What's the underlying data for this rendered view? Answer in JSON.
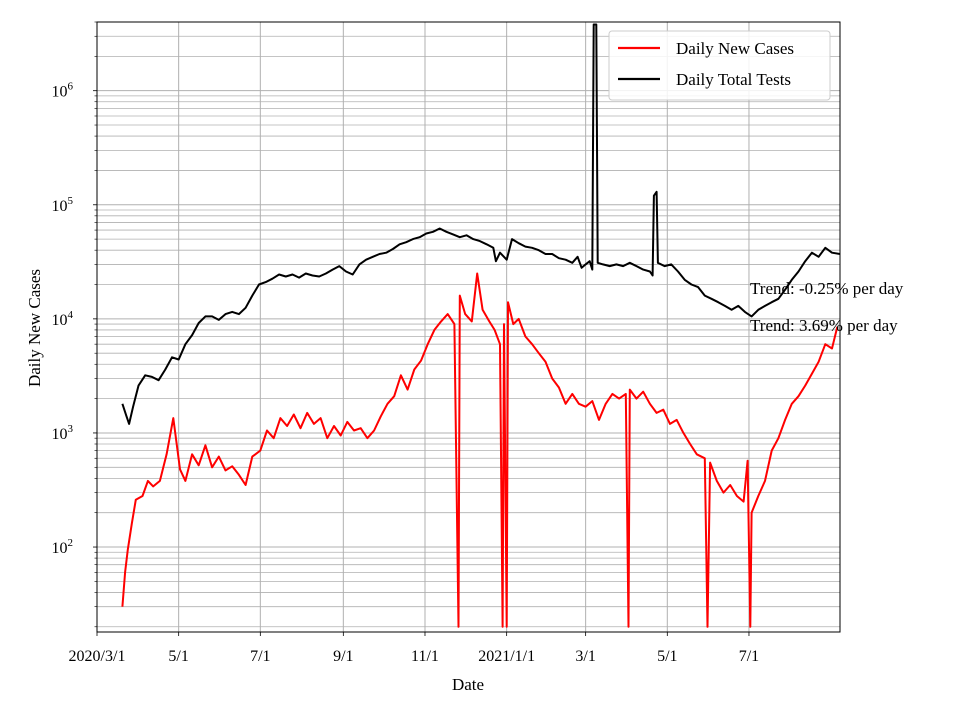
{
  "chart_data": {
    "type": "line",
    "title": "",
    "xlabel": "Date",
    "ylabel": "Daily New Cases",
    "yscale": "log",
    "ylim": [
      18,
      4000000
    ],
    "xlim": [
      "2020-03-01",
      "2021-09-07"
    ],
    "grid": true,
    "legend_position": "top-right",
    "x_ticks": [
      {
        "date": "2020-03-01",
        "label": "2020/3/1"
      },
      {
        "date": "2020-05-01",
        "label": "5/1"
      },
      {
        "date": "2020-07-01",
        "label": "7/1"
      },
      {
        "date": "2020-09-01",
        "label": "9/1"
      },
      {
        "date": "2020-11-01",
        "label": "11/1"
      },
      {
        "date": "2021-01-01",
        "label": "2021/1/1"
      },
      {
        "date": "2021-03-01",
        "label": "3/1"
      },
      {
        "date": "2021-05-01",
        "label": "5/1"
      },
      {
        "date": "2021-07-01",
        "label": "7/1"
      }
    ],
    "y_ticks": [
      {
        "value": 100,
        "base": "10",
        "exp": "2"
      },
      {
        "value": 1000,
        "base": "10",
        "exp": "3"
      },
      {
        "value": 10000,
        "base": "10",
        "exp": "4"
      },
      {
        "value": 100000,
        "base": "10",
        "exp": "5"
      },
      {
        "value": 1000000,
        "base": "10",
        "exp": "6"
      }
    ],
    "series": [
      {
        "name": "Daily New Cases",
        "color": "#ff0000",
        "points": [
          [
            "2020-03-20",
            30
          ],
          [
            "2020-03-22",
            60
          ],
          [
            "2020-03-24",
            95
          ],
          [
            "2020-03-27",
            160
          ],
          [
            "2020-03-30",
            260
          ],
          [
            "2020-04-04",
            280
          ],
          [
            "2020-04-08",
            380
          ],
          [
            "2020-04-12",
            340
          ],
          [
            "2020-04-17",
            380
          ],
          [
            "2020-04-22",
            650
          ],
          [
            "2020-04-27",
            1350
          ],
          [
            "2020-05-02",
            480
          ],
          [
            "2020-05-06",
            380
          ],
          [
            "2020-05-11",
            650
          ],
          [
            "2020-05-16",
            520
          ],
          [
            "2020-05-21",
            780
          ],
          [
            "2020-05-26",
            500
          ],
          [
            "2020-05-31",
            620
          ],
          [
            "2020-06-05",
            470
          ],
          [
            "2020-06-10",
            510
          ],
          [
            "2020-06-15",
            430
          ],
          [
            "2020-06-20",
            350
          ],
          [
            "2020-06-25",
            620
          ],
          [
            "2020-07-01",
            700
          ],
          [
            "2020-07-06",
            1050
          ],
          [
            "2020-07-11",
            900
          ],
          [
            "2020-07-16",
            1350
          ],
          [
            "2020-07-21",
            1150
          ],
          [
            "2020-07-26",
            1450
          ],
          [
            "2020-07-31",
            1100
          ],
          [
            "2020-08-05",
            1500
          ],
          [
            "2020-08-10",
            1200
          ],
          [
            "2020-08-15",
            1350
          ],
          [
            "2020-08-20",
            900
          ],
          [
            "2020-08-25",
            1150
          ],
          [
            "2020-08-30",
            950
          ],
          [
            "2020-09-04",
            1250
          ],
          [
            "2020-09-09",
            1050
          ],
          [
            "2020-09-14",
            1100
          ],
          [
            "2020-09-19",
            900
          ],
          [
            "2020-09-24",
            1050
          ],
          [
            "2020-09-29",
            1400
          ],
          [
            "2020-10-04",
            1800
          ],
          [
            "2020-10-09",
            2100
          ],
          [
            "2020-10-14",
            3200
          ],
          [
            "2020-10-19",
            2400
          ],
          [
            "2020-10-24",
            3600
          ],
          [
            "2020-10-29",
            4300
          ],
          [
            "2020-11-03",
            6000
          ],
          [
            "2020-11-08",
            8000
          ],
          [
            "2020-11-13",
            9500
          ],
          [
            "2020-11-18",
            11000
          ],
          [
            "2020-11-23",
            9000
          ],
          [
            "2020-11-26",
            20
          ],
          [
            "2020-11-27",
            16000
          ],
          [
            "2020-12-01",
            11000
          ],
          [
            "2020-12-06",
            9500
          ],
          [
            "2020-12-10",
            25000
          ],
          [
            "2020-12-14",
            12000
          ],
          [
            "2020-12-19",
            9500
          ],
          [
            "2020-12-23",
            8000
          ],
          [
            "2020-12-27",
            6000
          ],
          [
            "2020-12-29",
            20
          ],
          [
            "2020-12-30",
            9000
          ],
          [
            "2021-01-01",
            20
          ],
          [
            "2021-01-02",
            14000
          ],
          [
            "2021-01-06",
            9000
          ],
          [
            "2021-01-10",
            10000
          ],
          [
            "2021-01-15",
            7000
          ],
          [
            "2021-01-20",
            6000
          ],
          [
            "2021-01-25",
            5000
          ],
          [
            "2021-01-30",
            4200
          ],
          [
            "2021-02-04",
            3000
          ],
          [
            "2021-02-09",
            2500
          ],
          [
            "2021-02-14",
            1800
          ],
          [
            "2021-02-19",
            2200
          ],
          [
            "2021-02-24",
            1800
          ],
          [
            "2021-03-01",
            1700
          ],
          [
            "2021-03-06",
            1900
          ],
          [
            "2021-03-11",
            1300
          ],
          [
            "2021-03-16",
            1800
          ],
          [
            "2021-03-21",
            2200
          ],
          [
            "2021-03-26",
            2000
          ],
          [
            "2021-03-31",
            2200
          ],
          [
            "2021-04-02",
            20
          ],
          [
            "2021-04-03",
            2400
          ],
          [
            "2021-04-08",
            2000
          ],
          [
            "2021-04-13",
            2300
          ],
          [
            "2021-04-18",
            1800
          ],
          [
            "2021-04-23",
            1500
          ],
          [
            "2021-04-28",
            1600
          ],
          [
            "2021-05-03",
            1200
          ],
          [
            "2021-05-08",
            1300
          ],
          [
            "2021-05-13",
            1000
          ],
          [
            "2021-05-18",
            800
          ],
          [
            "2021-05-23",
            650
          ],
          [
            "2021-05-29",
            600
          ],
          [
            "2021-05-31",
            20
          ],
          [
            "2021-06-02",
            550
          ],
          [
            "2021-06-07",
            380
          ],
          [
            "2021-06-12",
            300
          ],
          [
            "2021-06-17",
            350
          ],
          [
            "2021-06-22",
            280
          ],
          [
            "2021-06-27",
            250
          ],
          [
            "2021-06-30",
            570
          ],
          [
            "2021-07-02",
            20
          ],
          [
            "2021-07-03",
            200
          ],
          [
            "2021-07-08",
            280
          ],
          [
            "2021-07-13",
            380
          ],
          [
            "2021-07-18",
            700
          ],
          [
            "2021-07-23",
            900
          ],
          [
            "2021-07-28",
            1300
          ],
          [
            "2021-08-02",
            1800
          ],
          [
            "2021-08-07",
            2100
          ],
          [
            "2021-08-12",
            2600
          ],
          [
            "2021-08-17",
            3300
          ],
          [
            "2021-08-22",
            4200
          ],
          [
            "2021-08-27",
            6000
          ],
          [
            "2021-09-01",
            5500
          ],
          [
            "2021-09-05",
            8500
          ]
        ]
      },
      {
        "name": "Daily Total Tests",
        "color": "#000000",
        "points": [
          [
            "2020-03-20",
            1800
          ],
          [
            "2020-03-23",
            1400
          ],
          [
            "2020-03-25",
            1200
          ],
          [
            "2020-03-28",
            1700
          ],
          [
            "2020-04-01",
            2600
          ],
          [
            "2020-04-06",
            3200
          ],
          [
            "2020-04-11",
            3100
          ],
          [
            "2020-04-16",
            2900
          ],
          [
            "2020-04-21",
            3600
          ],
          [
            "2020-04-26",
            4600
          ],
          [
            "2020-05-01",
            4400
          ],
          [
            "2020-05-06",
            6000
          ],
          [
            "2020-05-11",
            7200
          ],
          [
            "2020-05-16",
            9200
          ],
          [
            "2020-05-21",
            10500
          ],
          [
            "2020-05-26",
            10500
          ],
          [
            "2020-05-31",
            9800
          ],
          [
            "2020-06-05",
            11000
          ],
          [
            "2020-06-10",
            11500
          ],
          [
            "2020-06-15",
            11000
          ],
          [
            "2020-06-20",
            12500
          ],
          [
            "2020-06-25",
            16000
          ],
          [
            "2020-06-30",
            20000
          ],
          [
            "2020-07-05",
            21000
          ],
          [
            "2020-07-10",
            22500
          ],
          [
            "2020-07-15",
            24500
          ],
          [
            "2020-07-20",
            23500
          ],
          [
            "2020-07-25",
            24500
          ],
          [
            "2020-07-30",
            23000
          ],
          [
            "2020-08-04",
            25000
          ],
          [
            "2020-08-09",
            24000
          ],
          [
            "2020-08-14",
            23500
          ],
          [
            "2020-08-19",
            25000
          ],
          [
            "2020-08-24",
            27000
          ],
          [
            "2020-08-29",
            29000
          ],
          [
            "2020-09-03",
            26000
          ],
          [
            "2020-09-08",
            24500
          ],
          [
            "2020-09-13",
            30000
          ],
          [
            "2020-09-18",
            33000
          ],
          [
            "2020-09-23",
            35000
          ],
          [
            "2020-09-28",
            37000
          ],
          [
            "2020-10-03",
            38000
          ],
          [
            "2020-10-08",
            41000
          ],
          [
            "2020-10-13",
            45000
          ],
          [
            "2020-10-18",
            47000
          ],
          [
            "2020-10-23",
            50000
          ],
          [
            "2020-10-28",
            52000
          ],
          [
            "2020-11-02",
            56000
          ],
          [
            "2020-11-07",
            58000
          ],
          [
            "2020-11-12",
            62000
          ],
          [
            "2020-11-17",
            58000
          ],
          [
            "2020-11-22",
            55000
          ],
          [
            "2020-11-27",
            52000
          ],
          [
            "2020-12-02",
            54000
          ],
          [
            "2020-12-07",
            50000
          ],
          [
            "2020-12-12",
            48000
          ],
          [
            "2020-12-17",
            45000
          ],
          [
            "2020-12-22",
            42000
          ],
          [
            "2020-12-24",
            32000
          ],
          [
            "2020-12-27",
            38000
          ],
          [
            "2021-01-01",
            33000
          ],
          [
            "2021-01-05",
            50000
          ],
          [
            "2021-01-10",
            46000
          ],
          [
            "2021-01-15",
            43000
          ],
          [
            "2021-01-20",
            42000
          ],
          [
            "2021-01-25",
            40000
          ],
          [
            "2021-01-30",
            37000
          ],
          [
            "2021-02-04",
            37000
          ],
          [
            "2021-02-09",
            34000
          ],
          [
            "2021-02-14",
            33000
          ],
          [
            "2021-02-19",
            31000
          ],
          [
            "2021-02-23",
            35000
          ],
          [
            "2021-02-26",
            28000
          ],
          [
            "2021-03-01",
            30000
          ],
          [
            "2021-03-04",
            32000
          ],
          [
            "2021-03-06",
            27000
          ],
          [
            "2021-03-07",
            3800000
          ],
          [
            "2021-03-09",
            3800000
          ],
          [
            "2021-03-10",
            31000
          ],
          [
            "2021-03-14",
            30000
          ],
          [
            "2021-03-19",
            29000
          ],
          [
            "2021-03-24",
            30000
          ],
          [
            "2021-03-29",
            29000
          ],
          [
            "2021-04-03",
            31000
          ],
          [
            "2021-04-08",
            29000
          ],
          [
            "2021-04-13",
            27000
          ],
          [
            "2021-04-18",
            26000
          ],
          [
            "2021-04-20",
            24000
          ],
          [
            "2021-04-21",
            120000
          ],
          [
            "2021-04-23",
            130000
          ],
          [
            "2021-04-24",
            31000
          ],
          [
            "2021-04-29",
            29000
          ],
          [
            "2021-05-04",
            30000
          ],
          [
            "2021-05-09",
            26000
          ],
          [
            "2021-05-14",
            22000
          ],
          [
            "2021-05-19",
            20000
          ],
          [
            "2021-05-24",
            19000
          ],
          [
            "2021-05-29",
            16000
          ],
          [
            "2021-06-03",
            15000
          ],
          [
            "2021-06-08",
            14000
          ],
          [
            "2021-06-13",
            13000
          ],
          [
            "2021-06-18",
            12000
          ],
          [
            "2021-06-23",
            13000
          ],
          [
            "2021-06-28",
            11500
          ],
          [
            "2021-07-03",
            10500
          ],
          [
            "2021-07-08",
            12000
          ],
          [
            "2021-07-13",
            13000
          ],
          [
            "2021-07-18",
            14000
          ],
          [
            "2021-07-23",
            15000
          ],
          [
            "2021-07-28",
            18000
          ],
          [
            "2021-08-02",
            22000
          ],
          [
            "2021-08-07",
            26000
          ],
          [
            "2021-08-12",
            32000
          ],
          [
            "2021-08-17",
            38000
          ],
          [
            "2021-08-22",
            35000
          ],
          [
            "2021-08-27",
            42000
          ],
          [
            "2021-09-01",
            38000
          ],
          [
            "2021-09-07",
            37000
          ]
        ]
      }
    ],
    "annotations": [
      {
        "text": "Trend: -0.25% per day"
      },
      {
        "text": "Trend: 3.69% per day"
      }
    ]
  }
}
